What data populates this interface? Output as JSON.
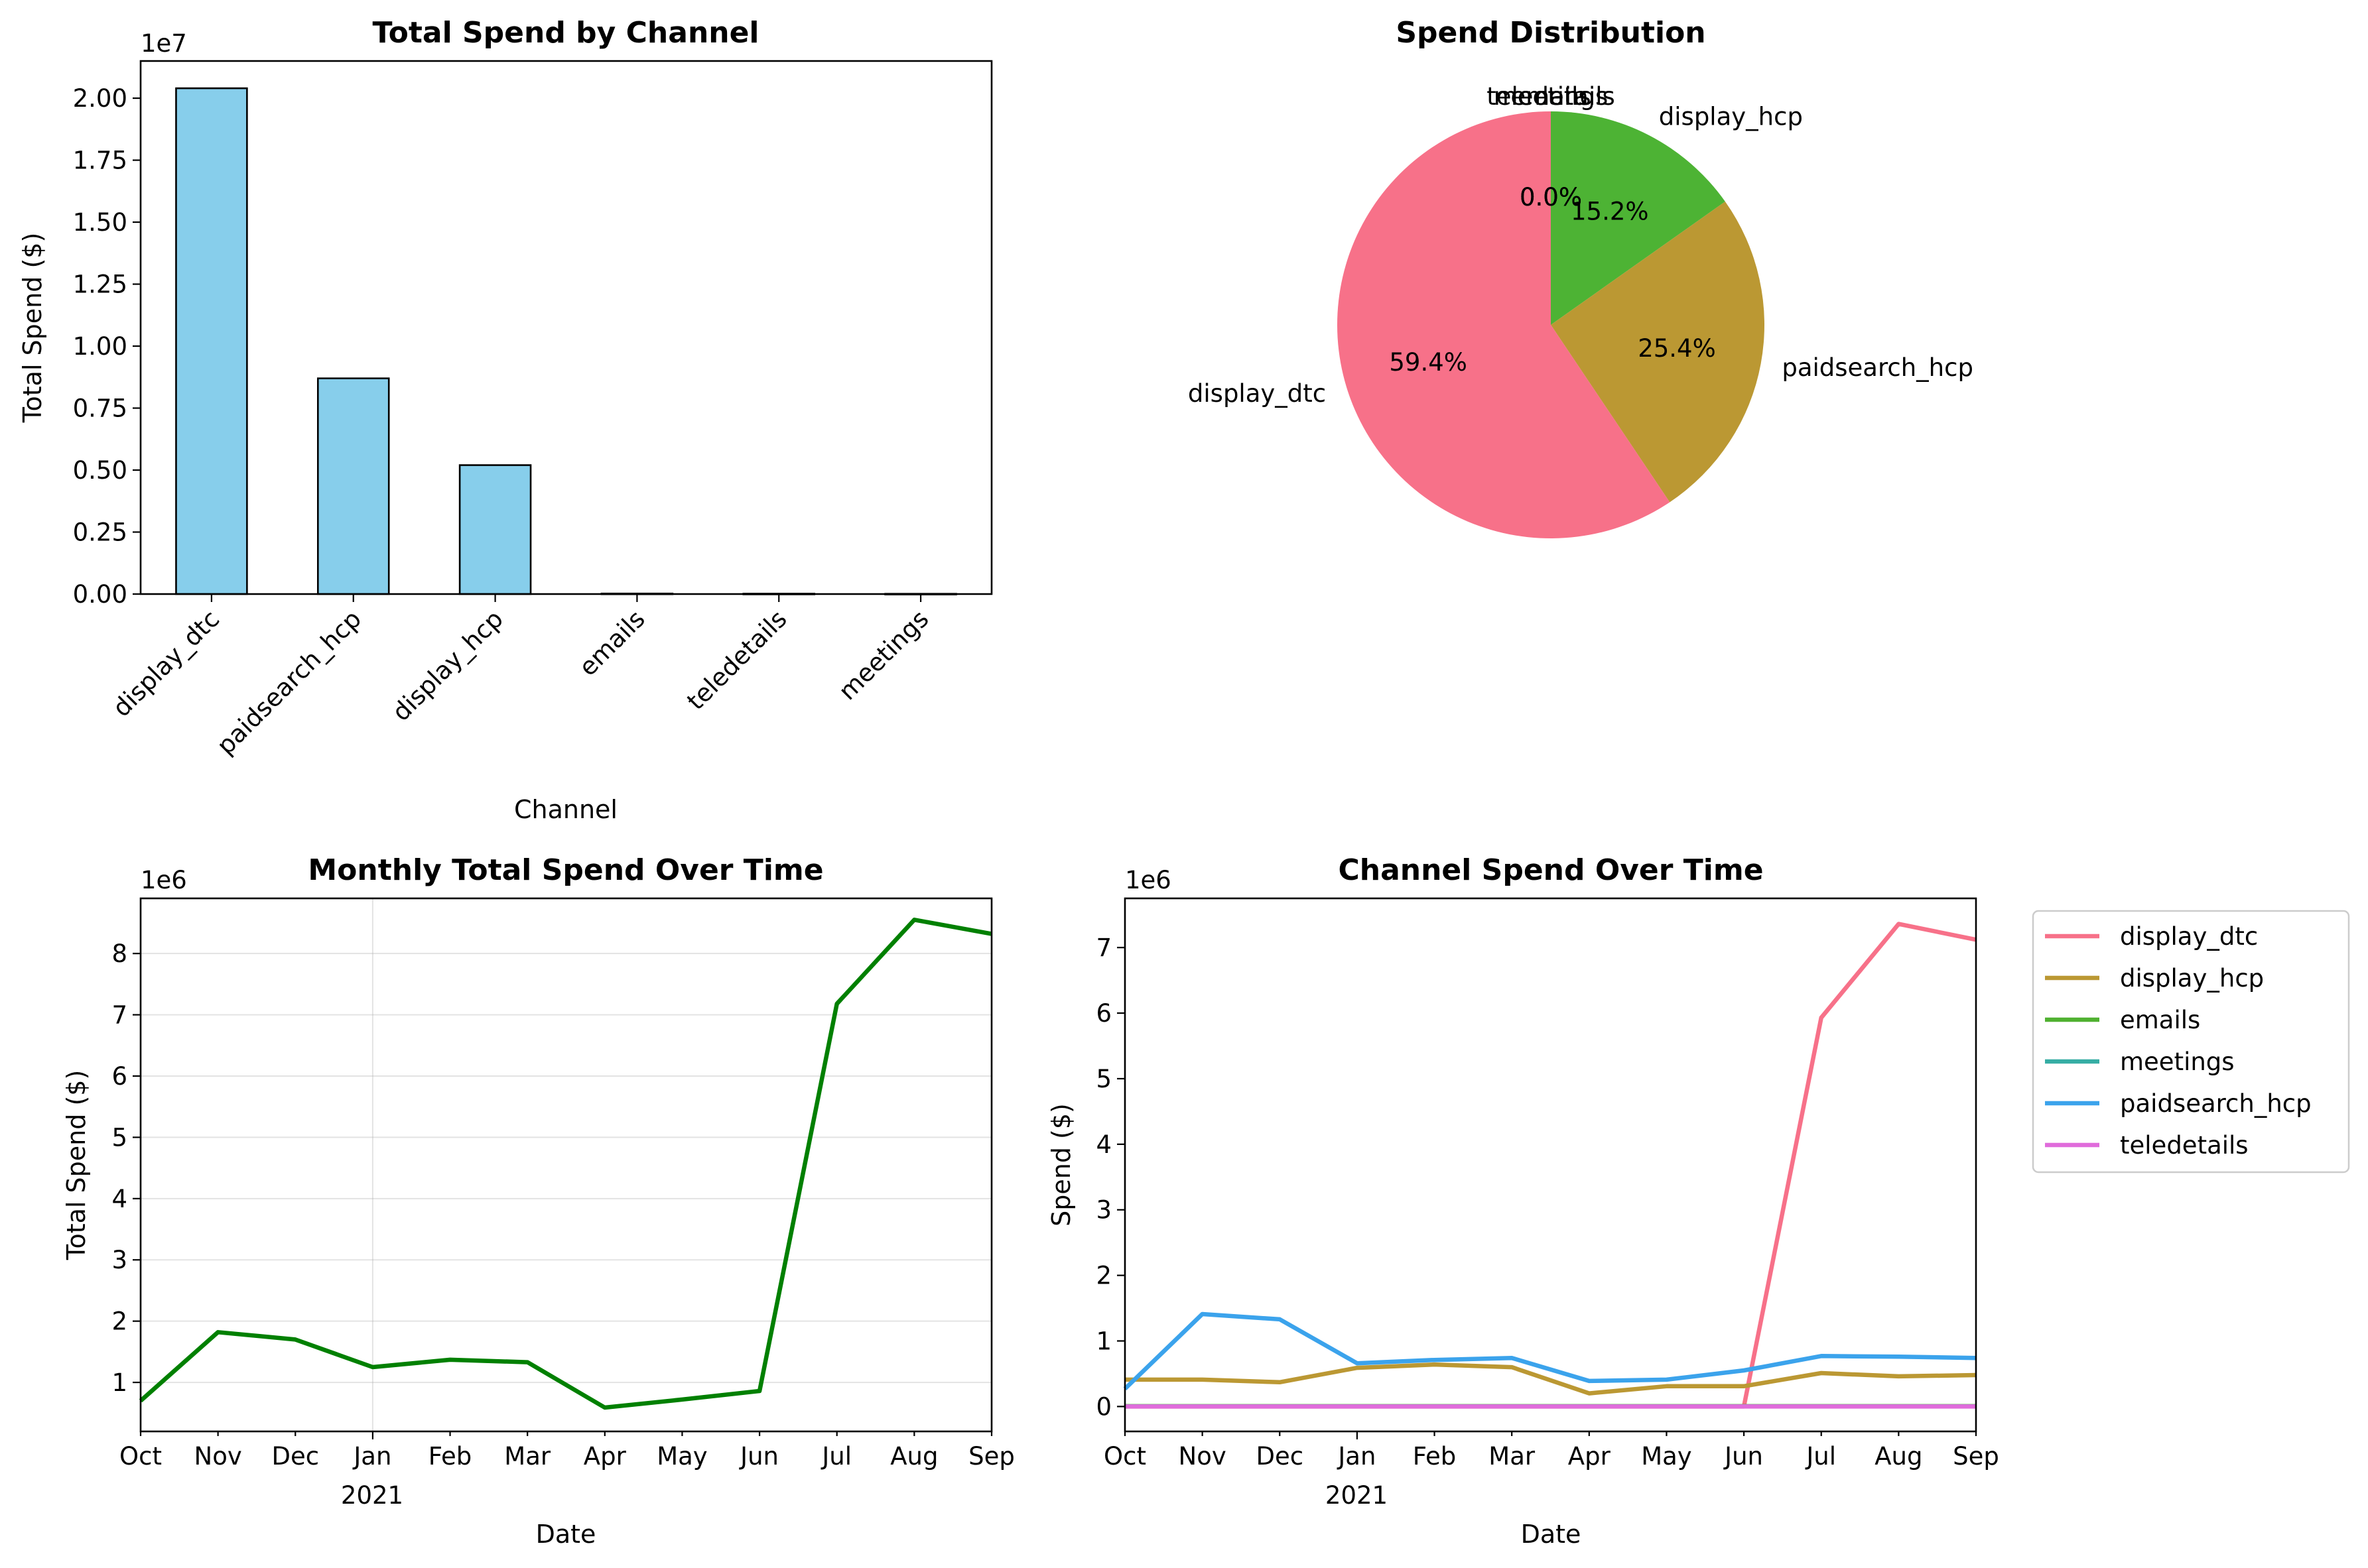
{
  "chart_data": [
    {
      "id": "bar",
      "type": "bar",
      "title": "Total Spend by Channel",
      "xlabel": "Channel",
      "ylabel": "Total Spend ($)",
      "offset_text": "1e7",
      "categories": [
        "display_dtc",
        "paidsearch_hcp",
        "display_hcp",
        "emails",
        "teledetails",
        "meetings"
      ],
      "values": [
        20400000,
        8700000,
        5200000,
        20000,
        15000,
        10000
      ],
      "ylim": [
        0,
        21500000
      ],
      "yticks": [
        0,
        2500000,
        5000000,
        7500000,
        10000000,
        12500000,
        15000000,
        17500000,
        20000000
      ],
      "ytick_labels": [
        "0.00",
        "0.25",
        "0.50",
        "0.75",
        "1.00",
        "1.25",
        "1.50",
        "1.75",
        "2.00"
      ],
      "bar_color": "#87CEEB",
      "edge_color": "#000000",
      "grid": false
    },
    {
      "id": "pie",
      "type": "pie",
      "title": "Spend Distribution",
      "start_angle_deg": 90,
      "direction": "clockwise",
      "slices": [
        {
          "label": "display_hcp",
          "value": 15.2,
          "pct": "15.2%",
          "color": "#4DB334"
        },
        {
          "label": "paidsearch_hcp",
          "value": 25.4,
          "pct": "25.4%",
          "color": "#BB9833"
        },
        {
          "label": "display_dtc",
          "value": 59.4,
          "pct": "59.4%",
          "color": "#F77189"
        },
        {
          "label": "meetings",
          "value": 0.0,
          "pct": "0.0%",
          "color": "#36ADA4"
        },
        {
          "label": "teledetails",
          "value": 0.0,
          "pct": "0.0%",
          "color": "#DC72E4"
        },
        {
          "label": "emails",
          "value": 0.0,
          "pct": "0.0%",
          "color": "#50B131"
        }
      ]
    },
    {
      "id": "monthly",
      "type": "line",
      "title": "Monthly Total Spend Over Time",
      "xlabel": "Date",
      "ylabel": "Total Spend ($)",
      "offset_text": "1e6",
      "x": [
        "Oct",
        "Nov",
        "Dec",
        "Jan",
        "Feb",
        "Mar",
        "Apr",
        "May",
        "Jun",
        "Jul",
        "Aug",
        "Sep"
      ],
      "x_year_label": "2021",
      "ylim": [
        200000,
        8900000
      ],
      "yticks": [
        1000000,
        2000000,
        3000000,
        4000000,
        5000000,
        6000000,
        7000000,
        8000000
      ],
      "ytick_labels": [
        "1",
        "2",
        "3",
        "4",
        "5",
        "6",
        "7",
        "8"
      ],
      "grid": true,
      "series": [
        {
          "values": [
            700000,
            1820000,
            1700000,
            1250000,
            1370000,
            1330000,
            590000,
            720000,
            860000,
            7180000,
            8550000,
            8320000
          ],
          "color": "#008000"
        }
      ]
    },
    {
      "id": "channels",
      "type": "line",
      "title": "Channel Spend Over Time",
      "xlabel": "Date",
      "ylabel": "Spend ($)",
      "offset_text": "1e6",
      "x": [
        "Oct",
        "Nov",
        "Dec",
        "Jan",
        "Feb",
        "Mar",
        "Apr",
        "May",
        "Jun",
        "Jul",
        "Aug",
        "Sep"
      ],
      "x_year_label": "2021",
      "ylim": [
        -380000,
        7750000
      ],
      "yticks": [
        0,
        1000000,
        2000000,
        3000000,
        4000000,
        5000000,
        6000000,
        7000000
      ],
      "ytick_labels": [
        "0",
        "1",
        "2",
        "3",
        "4",
        "5",
        "6",
        "7"
      ],
      "grid": false,
      "legend_placement": "outside-right",
      "series": [
        {
          "name": "display_dtc",
          "color": "#F77189",
          "values": [
            0,
            0,
            0,
            0,
            0,
            0,
            0,
            0,
            0,
            5930000,
            7360000,
            7120000
          ]
        },
        {
          "name": "display_hcp",
          "color": "#BB9833",
          "values": [
            410000,
            410000,
            370000,
            590000,
            640000,
            600000,
            200000,
            310000,
            310000,
            510000,
            460000,
            480000
          ]
        },
        {
          "name": "emails",
          "color": "#50B131",
          "values": [
            5000,
            5000,
            5000,
            5000,
            5000,
            5000,
            5000,
            5000,
            5000,
            5000,
            5000,
            5000
          ]
        },
        {
          "name": "meetings",
          "color": "#36ADA4",
          "values": [
            2000,
            2000,
            2000,
            2000,
            2000,
            2000,
            2000,
            2000,
            2000,
            2000,
            2000,
            2000
          ]
        },
        {
          "name": "paidsearch_hcp",
          "color": "#3BA3EC",
          "values": [
            270000,
            1410000,
            1330000,
            660000,
            710000,
            740000,
            390000,
            410000,
            550000,
            770000,
            760000,
            740000
          ]
        },
        {
          "name": "teledetails",
          "color": "#E06CDB",
          "values": [
            0,
            0,
            0,
            0,
            0,
            0,
            0,
            0,
            0,
            0,
            0,
            0
          ]
        }
      ]
    }
  ]
}
